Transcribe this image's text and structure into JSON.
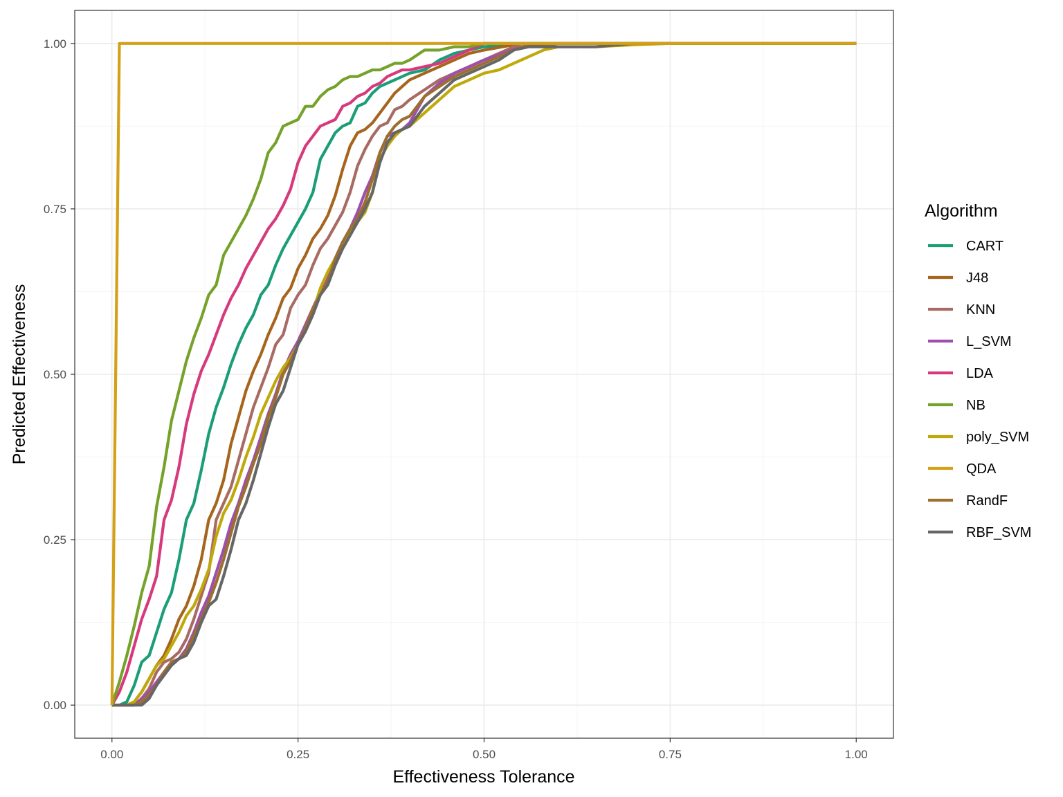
{
  "chart_data": {
    "type": "line",
    "title": "",
    "xlabel": "Effectiveness Tolerance",
    "ylabel": "Predicted Effectiveness",
    "xlim": [
      -0.05,
      1.05
    ],
    "ylim": [
      -0.05,
      1.05
    ],
    "x_ticks": [
      "0.00",
      "0.25",
      "0.50",
      "0.75",
      "1.00"
    ],
    "y_ticks": [
      "0.00",
      "0.25",
      "0.50",
      "0.75",
      "1.00"
    ],
    "grid": true,
    "legend": {
      "title": "Algorithm",
      "position": "right"
    },
    "series": [
      {
        "name": "CART",
        "color": "#1b9e77",
        "x": [
          0,
          0.01,
          0.02,
          0.03,
          0.04,
          0.05,
          0.06,
          0.07,
          0.08,
          0.09,
          0.1,
          0.11,
          0.12,
          0.13,
          0.14,
          0.15,
          0.16,
          0.17,
          0.18,
          0.19,
          0.2,
          0.21,
          0.22,
          0.23,
          0.24,
          0.25,
          0.26,
          0.27,
          0.28,
          0.29,
          0.3,
          0.31,
          0.32,
          0.33,
          0.34,
          0.35,
          0.36,
          0.37,
          0.38,
          0.39,
          0.4,
          0.42,
          0.44,
          0.46,
          0.48,
          0.5,
          0.55,
          0.6,
          0.7,
          1.0
        ],
        "y": [
          0,
          0,
          0.005,
          0.03,
          0.065,
          0.075,
          0.11,
          0.145,
          0.17,
          0.22,
          0.28,
          0.305,
          0.355,
          0.41,
          0.45,
          0.48,
          0.515,
          0.545,
          0.57,
          0.59,
          0.62,
          0.635,
          0.665,
          0.69,
          0.71,
          0.73,
          0.75,
          0.775,
          0.825,
          0.845,
          0.865,
          0.875,
          0.88,
          0.905,
          0.91,
          0.925,
          0.935,
          0.94,
          0.945,
          0.95,
          0.955,
          0.96,
          0.975,
          0.985,
          0.99,
          0.995,
          1.0,
          1.0,
          1.0,
          1.0
        ]
      },
      {
        "name": "J48",
        "color": "#a6651c",
        "x": [
          0,
          0.01,
          0.02,
          0.03,
          0.04,
          0.05,
          0.06,
          0.07,
          0.08,
          0.09,
          0.1,
          0.11,
          0.12,
          0.13,
          0.14,
          0.15,
          0.16,
          0.17,
          0.18,
          0.19,
          0.2,
          0.21,
          0.22,
          0.23,
          0.24,
          0.25,
          0.26,
          0.27,
          0.28,
          0.29,
          0.3,
          0.31,
          0.32,
          0.33,
          0.34,
          0.35,
          0.36,
          0.37,
          0.38,
          0.39,
          0.4,
          0.42,
          0.44,
          0.46,
          0.48,
          0.5,
          0.55,
          0.6,
          0.7,
          1.0
        ],
        "y": [
          0,
          0,
          0,
          0.005,
          0.02,
          0.04,
          0.06,
          0.075,
          0.1,
          0.13,
          0.15,
          0.18,
          0.22,
          0.28,
          0.305,
          0.34,
          0.395,
          0.435,
          0.475,
          0.505,
          0.53,
          0.56,
          0.585,
          0.615,
          0.63,
          0.66,
          0.68,
          0.705,
          0.72,
          0.74,
          0.77,
          0.81,
          0.845,
          0.865,
          0.87,
          0.88,
          0.895,
          0.91,
          0.925,
          0.935,
          0.945,
          0.955,
          0.965,
          0.975,
          0.985,
          0.99,
          1.0,
          1.0,
          1.0,
          1.0
        ]
      },
      {
        "name": "KNN",
        "color": "#a86b63",
        "x": [
          0,
          0.01,
          0.02,
          0.03,
          0.04,
          0.05,
          0.06,
          0.07,
          0.08,
          0.09,
          0.1,
          0.11,
          0.12,
          0.13,
          0.14,
          0.15,
          0.16,
          0.17,
          0.18,
          0.19,
          0.2,
          0.21,
          0.22,
          0.23,
          0.24,
          0.25,
          0.26,
          0.27,
          0.28,
          0.29,
          0.3,
          0.31,
          0.32,
          0.33,
          0.34,
          0.35,
          0.36,
          0.37,
          0.38,
          0.39,
          0.4,
          0.42,
          0.44,
          0.46,
          0.48,
          0.5,
          0.55,
          0.6,
          0.7,
          1.0
        ],
        "y": [
          0,
          0,
          0,
          0,
          0.01,
          0.025,
          0.05,
          0.065,
          0.07,
          0.08,
          0.1,
          0.13,
          0.165,
          0.2,
          0.28,
          0.305,
          0.33,
          0.37,
          0.41,
          0.45,
          0.48,
          0.51,
          0.545,
          0.56,
          0.6,
          0.62,
          0.635,
          0.665,
          0.69,
          0.705,
          0.725,
          0.745,
          0.775,
          0.815,
          0.84,
          0.86,
          0.875,
          0.88,
          0.9,
          0.905,
          0.915,
          0.93,
          0.945,
          0.955,
          0.965,
          0.975,
          1.0,
          1.0,
          1.0,
          1.0
        ]
      },
      {
        "name": "L_SVM",
        "color": "#9e4fae",
        "x": [
          0,
          0.01,
          0.02,
          0.03,
          0.04,
          0.05,
          0.06,
          0.07,
          0.08,
          0.09,
          0.1,
          0.11,
          0.12,
          0.13,
          0.14,
          0.15,
          0.16,
          0.17,
          0.18,
          0.19,
          0.2,
          0.21,
          0.22,
          0.23,
          0.24,
          0.25,
          0.26,
          0.27,
          0.28,
          0.29,
          0.3,
          0.31,
          0.32,
          0.33,
          0.34,
          0.35,
          0.36,
          0.37,
          0.38,
          0.39,
          0.4,
          0.42,
          0.44,
          0.46,
          0.48,
          0.5,
          0.55,
          0.6,
          0.7,
          1.0
        ],
        "y": [
          0,
          0,
          0,
          0,
          0.01,
          0.02,
          0.035,
          0.05,
          0.065,
          0.07,
          0.085,
          0.11,
          0.14,
          0.165,
          0.2,
          0.235,
          0.275,
          0.305,
          0.34,
          0.37,
          0.405,
          0.44,
          0.47,
          0.505,
          0.53,
          0.55,
          0.575,
          0.6,
          0.625,
          0.645,
          0.675,
          0.7,
          0.72,
          0.745,
          0.775,
          0.8,
          0.835,
          0.86,
          0.865,
          0.87,
          0.88,
          0.92,
          0.94,
          0.955,
          0.965,
          0.975,
          0.995,
          1.0,
          1.0,
          1.0
        ]
      },
      {
        "name": "LDA",
        "color": "#d63a7c",
        "x": [
          0,
          0.01,
          0.02,
          0.03,
          0.04,
          0.05,
          0.06,
          0.07,
          0.08,
          0.09,
          0.1,
          0.11,
          0.12,
          0.13,
          0.14,
          0.15,
          0.16,
          0.17,
          0.18,
          0.19,
          0.2,
          0.21,
          0.22,
          0.23,
          0.24,
          0.25,
          0.26,
          0.27,
          0.28,
          0.29,
          0.3,
          0.31,
          0.32,
          0.33,
          0.34,
          0.35,
          0.36,
          0.37,
          0.38,
          0.39,
          0.4,
          0.42,
          0.44,
          0.46,
          0.48,
          0.5,
          0.55,
          0.6,
          0.7,
          1.0
        ],
        "y": [
          0,
          0.02,
          0.05,
          0.09,
          0.13,
          0.16,
          0.195,
          0.28,
          0.31,
          0.36,
          0.425,
          0.47,
          0.505,
          0.53,
          0.56,
          0.59,
          0.615,
          0.635,
          0.66,
          0.68,
          0.7,
          0.72,
          0.735,
          0.755,
          0.78,
          0.82,
          0.845,
          0.86,
          0.875,
          0.88,
          0.885,
          0.905,
          0.91,
          0.92,
          0.925,
          0.935,
          0.94,
          0.95,
          0.955,
          0.96,
          0.96,
          0.965,
          0.97,
          0.98,
          0.99,
          1.0,
          1.0,
          1.0,
          1.0,
          1.0
        ]
      },
      {
        "name": "NB",
        "color": "#75a22a",
        "x": [
          0,
          0.01,
          0.02,
          0.03,
          0.04,
          0.05,
          0.06,
          0.07,
          0.08,
          0.09,
          0.1,
          0.11,
          0.12,
          0.13,
          0.14,
          0.15,
          0.16,
          0.17,
          0.18,
          0.19,
          0.2,
          0.21,
          0.22,
          0.23,
          0.24,
          0.25,
          0.26,
          0.27,
          0.28,
          0.29,
          0.3,
          0.31,
          0.32,
          0.33,
          0.34,
          0.35,
          0.36,
          0.37,
          0.38,
          0.39,
          0.4,
          0.42,
          0.44,
          0.46,
          0.48,
          0.5,
          0.55,
          0.6,
          0.7,
          1.0
        ],
        "y": [
          0,
          0.035,
          0.075,
          0.12,
          0.17,
          0.21,
          0.3,
          0.36,
          0.43,
          0.475,
          0.52,
          0.555,
          0.585,
          0.62,
          0.635,
          0.68,
          0.7,
          0.72,
          0.74,
          0.765,
          0.795,
          0.835,
          0.85,
          0.875,
          0.88,
          0.885,
          0.905,
          0.905,
          0.92,
          0.93,
          0.935,
          0.945,
          0.95,
          0.95,
          0.955,
          0.96,
          0.96,
          0.965,
          0.97,
          0.97,
          0.975,
          0.99,
          0.99,
          0.995,
          0.995,
          1.0,
          1.0,
          1.0,
          1.0,
          1.0
        ]
      },
      {
        "name": "poly_SVM",
        "color": "#bfa90a",
        "x": [
          0,
          0.01,
          0.02,
          0.03,
          0.04,
          0.05,
          0.06,
          0.07,
          0.08,
          0.09,
          0.1,
          0.11,
          0.12,
          0.13,
          0.14,
          0.15,
          0.16,
          0.17,
          0.18,
          0.19,
          0.2,
          0.21,
          0.22,
          0.23,
          0.24,
          0.25,
          0.26,
          0.27,
          0.28,
          0.29,
          0.3,
          0.31,
          0.32,
          0.33,
          0.34,
          0.35,
          0.36,
          0.37,
          0.38,
          0.39,
          0.4,
          0.42,
          0.44,
          0.46,
          0.48,
          0.5,
          0.52,
          0.55,
          0.58,
          0.6,
          0.65,
          0.7,
          0.75,
          1.0
        ],
        "y": [
          0,
          0,
          0,
          0.005,
          0.02,
          0.04,
          0.06,
          0.07,
          0.09,
          0.11,
          0.135,
          0.15,
          0.175,
          0.205,
          0.255,
          0.29,
          0.31,
          0.34,
          0.375,
          0.405,
          0.44,
          0.465,
          0.49,
          0.51,
          0.525,
          0.545,
          0.565,
          0.595,
          0.63,
          0.655,
          0.675,
          0.695,
          0.715,
          0.73,
          0.745,
          0.775,
          0.825,
          0.845,
          0.86,
          0.87,
          0.875,
          0.895,
          0.915,
          0.935,
          0.945,
          0.955,
          0.96,
          0.975,
          0.99,
          0.995,
          0.995,
          0.998,
          1.0,
          1.0
        ]
      },
      {
        "name": "QDA",
        "color": "#d4a017",
        "x": [
          0,
          0.01,
          0.02,
          0.5,
          1.0
        ],
        "y": [
          0,
          1.0,
          1.0,
          1.0,
          1.0
        ]
      },
      {
        "name": "RandF",
        "color": "#9c6f2e",
        "x": [
          0,
          0.01,
          0.02,
          0.03,
          0.04,
          0.05,
          0.06,
          0.07,
          0.08,
          0.09,
          0.1,
          0.11,
          0.12,
          0.13,
          0.14,
          0.15,
          0.16,
          0.17,
          0.18,
          0.19,
          0.2,
          0.21,
          0.22,
          0.23,
          0.24,
          0.25,
          0.26,
          0.27,
          0.28,
          0.29,
          0.3,
          0.31,
          0.32,
          0.33,
          0.34,
          0.35,
          0.36,
          0.37,
          0.38,
          0.39,
          0.4,
          0.42,
          0.44,
          0.46,
          0.48,
          0.5,
          0.55,
          0.6,
          0.7,
          1.0
        ],
        "y": [
          0,
          0,
          0,
          0,
          0.005,
          0.015,
          0.03,
          0.05,
          0.065,
          0.07,
          0.08,
          0.105,
          0.13,
          0.155,
          0.185,
          0.22,
          0.26,
          0.3,
          0.33,
          0.365,
          0.395,
          0.435,
          0.465,
          0.5,
          0.52,
          0.545,
          0.57,
          0.6,
          0.62,
          0.64,
          0.675,
          0.7,
          0.72,
          0.735,
          0.76,
          0.795,
          0.835,
          0.86,
          0.875,
          0.885,
          0.89,
          0.92,
          0.935,
          0.95,
          0.96,
          0.97,
          0.995,
          1.0,
          1.0,
          1.0
        ]
      },
      {
        "name": "RBF_SVM",
        "color": "#666666",
        "x": [
          0,
          0.01,
          0.02,
          0.03,
          0.04,
          0.05,
          0.06,
          0.07,
          0.08,
          0.09,
          0.1,
          0.11,
          0.12,
          0.13,
          0.14,
          0.15,
          0.16,
          0.17,
          0.18,
          0.19,
          0.2,
          0.21,
          0.22,
          0.23,
          0.24,
          0.25,
          0.26,
          0.27,
          0.28,
          0.29,
          0.3,
          0.31,
          0.32,
          0.33,
          0.34,
          0.35,
          0.36,
          0.37,
          0.38,
          0.39,
          0.4,
          0.42,
          0.44,
          0.46,
          0.48,
          0.5,
          0.52,
          0.54,
          0.56,
          0.6,
          0.65,
          0.7,
          1.0
        ],
        "y": [
          0,
          0,
          0,
          0,
          0,
          0.01,
          0.03,
          0.045,
          0.06,
          0.07,
          0.075,
          0.095,
          0.125,
          0.15,
          0.16,
          0.195,
          0.235,
          0.28,
          0.305,
          0.34,
          0.38,
          0.42,
          0.455,
          0.475,
          0.51,
          0.545,
          0.565,
          0.59,
          0.62,
          0.635,
          0.665,
          0.69,
          0.71,
          0.73,
          0.75,
          0.775,
          0.82,
          0.85,
          0.865,
          0.87,
          0.875,
          0.905,
          0.925,
          0.945,
          0.955,
          0.965,
          0.975,
          0.99,
          0.995,
          0.995,
          0.995,
          1.0,
          1.0
        ]
      }
    ]
  }
}
